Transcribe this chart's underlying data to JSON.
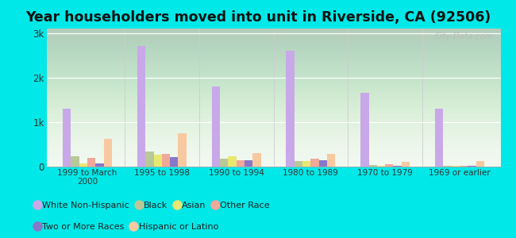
{
  "title": "Year householders moved into unit in Riverside, CA (92506)",
  "categories": [
    "1999 to March\n2000",
    "1995 to 1998",
    "1990 to 1994",
    "1980 to 1989",
    "1970 to 1979",
    "1969 or earlier"
  ],
  "series": {
    "White Non-Hispanic": [
      1300,
      2700,
      1800,
      2600,
      1650,
      1300
    ],
    "Black": [
      230,
      330,
      180,
      130,
      30,
      20
    ],
    "Asian": [
      80,
      270,
      230,
      130,
      20,
      20
    ],
    "Other Race": [
      200,
      290,
      140,
      170,
      60,
      20
    ],
    "Two or More Races": [
      80,
      220,
      140,
      150,
      20,
      20
    ],
    "Hispanic or Latino": [
      620,
      750,
      310,
      280,
      110,
      120
    ]
  },
  "colors": {
    "White Non-Hispanic": "#c8a8e8",
    "Black": "#b8c898",
    "Asian": "#e8e870",
    "Other Race": "#f0a898",
    "Two or More Races": "#8878c8",
    "Hispanic or Latino": "#f8c8a0"
  },
  "legend_row1": [
    "White Non-Hispanic",
    "Black",
    "Asian",
    "Other Race"
  ],
  "legend_row2": [
    "Two or More Races",
    "Hispanic or Latino"
  ],
  "ylim": [
    0,
    3100
  ],
  "yticks": [
    0,
    1000,
    2000,
    3000
  ],
  "ytick_labels": [
    "0",
    "1k",
    "2k",
    "3k"
  ],
  "background_color": "#00e8e8",
  "watermark": "City-Data.com",
  "title_fontsize": 12.5,
  "legend_fontsize": 8.0
}
